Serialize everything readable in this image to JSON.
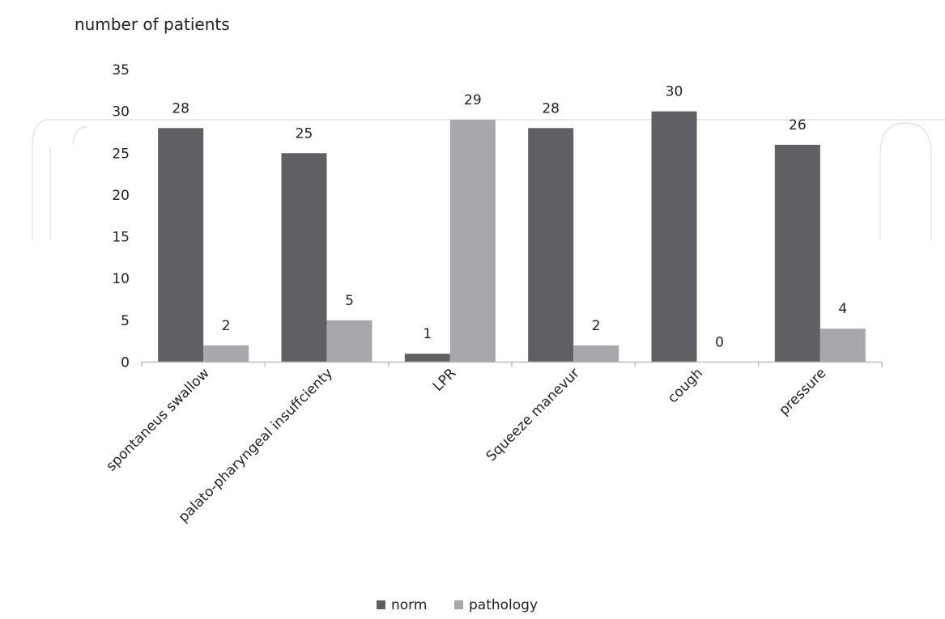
{
  "chart_data": {
    "type": "bar",
    "title": "",
    "ylabel": "number of patients",
    "xlabel": "",
    "categories": [
      "spontaneus swallow",
      "palato-pharyngeal insuffcienty",
      "LPR",
      "Squeeze manevur",
      "cough",
      "pressure"
    ],
    "series": [
      {
        "name": "norm",
        "color": "#606064",
        "values": [
          28,
          25,
          1,
          28,
          30,
          26
        ]
      },
      {
        "name": "pathology",
        "color": "#a6a8ab",
        "values": [
          2,
          5,
          29,
          2,
          0,
          4
        ]
      }
    ],
    "ylim": [
      0,
      35
    ],
    "yticks": [
      0,
      5,
      10,
      15,
      20,
      25,
      30,
      35
    ],
    "grid": false,
    "legend": "bottom-center",
    "data_labels": true
  }
}
